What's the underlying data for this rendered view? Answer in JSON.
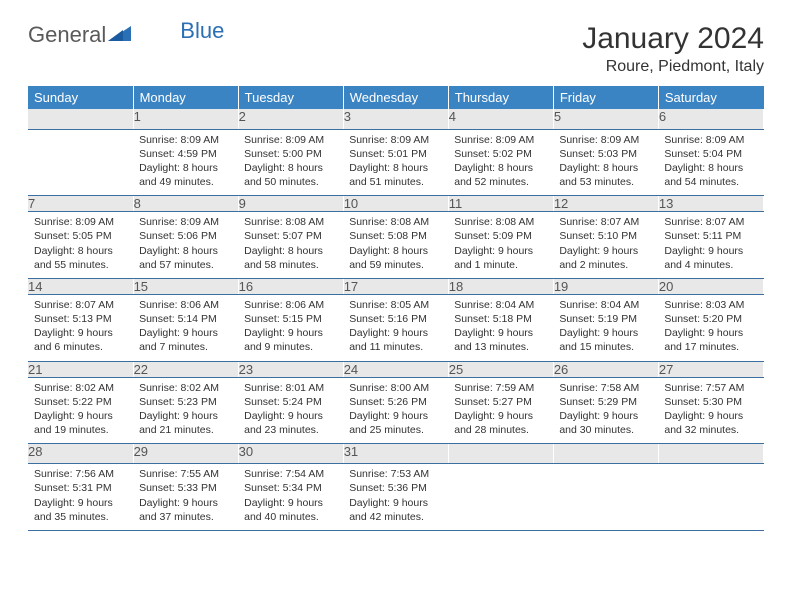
{
  "branding": {
    "logo_text_1": "General",
    "logo_text_2": "Blue"
  },
  "title": {
    "month": "January 2024",
    "location": "Roure, Piedmont, Italy"
  },
  "colors": {
    "header_bg": "#3b84c4",
    "header_fg": "#ffffff",
    "daynum_bg": "#e8e8e8",
    "rule": "#3b6fa0",
    "logo_gray": "#5a5a5a",
    "logo_blue": "#2b6fb5"
  },
  "day_names": [
    "Sunday",
    "Monday",
    "Tuesday",
    "Wednesday",
    "Thursday",
    "Friday",
    "Saturday"
  ],
  "weeks": [
    [
      null,
      {
        "n": "1",
        "sr": "Sunrise: 8:09 AM",
        "ss": "Sunset: 4:59 PM",
        "d1": "Daylight: 8 hours",
        "d2": "and 49 minutes."
      },
      {
        "n": "2",
        "sr": "Sunrise: 8:09 AM",
        "ss": "Sunset: 5:00 PM",
        "d1": "Daylight: 8 hours",
        "d2": "and 50 minutes."
      },
      {
        "n": "3",
        "sr": "Sunrise: 8:09 AM",
        "ss": "Sunset: 5:01 PM",
        "d1": "Daylight: 8 hours",
        "d2": "and 51 minutes."
      },
      {
        "n": "4",
        "sr": "Sunrise: 8:09 AM",
        "ss": "Sunset: 5:02 PM",
        "d1": "Daylight: 8 hours",
        "d2": "and 52 minutes."
      },
      {
        "n": "5",
        "sr": "Sunrise: 8:09 AM",
        "ss": "Sunset: 5:03 PM",
        "d1": "Daylight: 8 hours",
        "d2": "and 53 minutes."
      },
      {
        "n": "6",
        "sr": "Sunrise: 8:09 AM",
        "ss": "Sunset: 5:04 PM",
        "d1": "Daylight: 8 hours",
        "d2": "and 54 minutes."
      }
    ],
    [
      {
        "n": "7",
        "sr": "Sunrise: 8:09 AM",
        "ss": "Sunset: 5:05 PM",
        "d1": "Daylight: 8 hours",
        "d2": "and 55 minutes."
      },
      {
        "n": "8",
        "sr": "Sunrise: 8:09 AM",
        "ss": "Sunset: 5:06 PM",
        "d1": "Daylight: 8 hours",
        "d2": "and 57 minutes."
      },
      {
        "n": "9",
        "sr": "Sunrise: 8:08 AM",
        "ss": "Sunset: 5:07 PM",
        "d1": "Daylight: 8 hours",
        "d2": "and 58 minutes."
      },
      {
        "n": "10",
        "sr": "Sunrise: 8:08 AM",
        "ss": "Sunset: 5:08 PM",
        "d1": "Daylight: 8 hours",
        "d2": "and 59 minutes."
      },
      {
        "n": "11",
        "sr": "Sunrise: 8:08 AM",
        "ss": "Sunset: 5:09 PM",
        "d1": "Daylight: 9 hours",
        "d2": "and 1 minute."
      },
      {
        "n": "12",
        "sr": "Sunrise: 8:07 AM",
        "ss": "Sunset: 5:10 PM",
        "d1": "Daylight: 9 hours",
        "d2": "and 2 minutes."
      },
      {
        "n": "13",
        "sr": "Sunrise: 8:07 AM",
        "ss": "Sunset: 5:11 PM",
        "d1": "Daylight: 9 hours",
        "d2": "and 4 minutes."
      }
    ],
    [
      {
        "n": "14",
        "sr": "Sunrise: 8:07 AM",
        "ss": "Sunset: 5:13 PM",
        "d1": "Daylight: 9 hours",
        "d2": "and 6 minutes."
      },
      {
        "n": "15",
        "sr": "Sunrise: 8:06 AM",
        "ss": "Sunset: 5:14 PM",
        "d1": "Daylight: 9 hours",
        "d2": "and 7 minutes."
      },
      {
        "n": "16",
        "sr": "Sunrise: 8:06 AM",
        "ss": "Sunset: 5:15 PM",
        "d1": "Daylight: 9 hours",
        "d2": "and 9 minutes."
      },
      {
        "n": "17",
        "sr": "Sunrise: 8:05 AM",
        "ss": "Sunset: 5:16 PM",
        "d1": "Daylight: 9 hours",
        "d2": "and 11 minutes."
      },
      {
        "n": "18",
        "sr": "Sunrise: 8:04 AM",
        "ss": "Sunset: 5:18 PM",
        "d1": "Daylight: 9 hours",
        "d2": "and 13 minutes."
      },
      {
        "n": "19",
        "sr": "Sunrise: 8:04 AM",
        "ss": "Sunset: 5:19 PM",
        "d1": "Daylight: 9 hours",
        "d2": "and 15 minutes."
      },
      {
        "n": "20",
        "sr": "Sunrise: 8:03 AM",
        "ss": "Sunset: 5:20 PM",
        "d1": "Daylight: 9 hours",
        "d2": "and 17 minutes."
      }
    ],
    [
      {
        "n": "21",
        "sr": "Sunrise: 8:02 AM",
        "ss": "Sunset: 5:22 PM",
        "d1": "Daylight: 9 hours",
        "d2": "and 19 minutes."
      },
      {
        "n": "22",
        "sr": "Sunrise: 8:02 AM",
        "ss": "Sunset: 5:23 PM",
        "d1": "Daylight: 9 hours",
        "d2": "and 21 minutes."
      },
      {
        "n": "23",
        "sr": "Sunrise: 8:01 AM",
        "ss": "Sunset: 5:24 PM",
        "d1": "Daylight: 9 hours",
        "d2": "and 23 minutes."
      },
      {
        "n": "24",
        "sr": "Sunrise: 8:00 AM",
        "ss": "Sunset: 5:26 PM",
        "d1": "Daylight: 9 hours",
        "d2": "and 25 minutes."
      },
      {
        "n": "25",
        "sr": "Sunrise: 7:59 AM",
        "ss": "Sunset: 5:27 PM",
        "d1": "Daylight: 9 hours",
        "d2": "and 28 minutes."
      },
      {
        "n": "26",
        "sr": "Sunrise: 7:58 AM",
        "ss": "Sunset: 5:29 PM",
        "d1": "Daylight: 9 hours",
        "d2": "and 30 minutes."
      },
      {
        "n": "27",
        "sr": "Sunrise: 7:57 AM",
        "ss": "Sunset: 5:30 PM",
        "d1": "Daylight: 9 hours",
        "d2": "and 32 minutes."
      }
    ],
    [
      {
        "n": "28",
        "sr": "Sunrise: 7:56 AM",
        "ss": "Sunset: 5:31 PM",
        "d1": "Daylight: 9 hours",
        "d2": "and 35 minutes."
      },
      {
        "n": "29",
        "sr": "Sunrise: 7:55 AM",
        "ss": "Sunset: 5:33 PM",
        "d1": "Daylight: 9 hours",
        "d2": "and 37 minutes."
      },
      {
        "n": "30",
        "sr": "Sunrise: 7:54 AM",
        "ss": "Sunset: 5:34 PM",
        "d1": "Daylight: 9 hours",
        "d2": "and 40 minutes."
      },
      {
        "n": "31",
        "sr": "Sunrise: 7:53 AM",
        "ss": "Sunset: 5:36 PM",
        "d1": "Daylight: 9 hours",
        "d2": "and 42 minutes."
      },
      null,
      null,
      null
    ]
  ]
}
